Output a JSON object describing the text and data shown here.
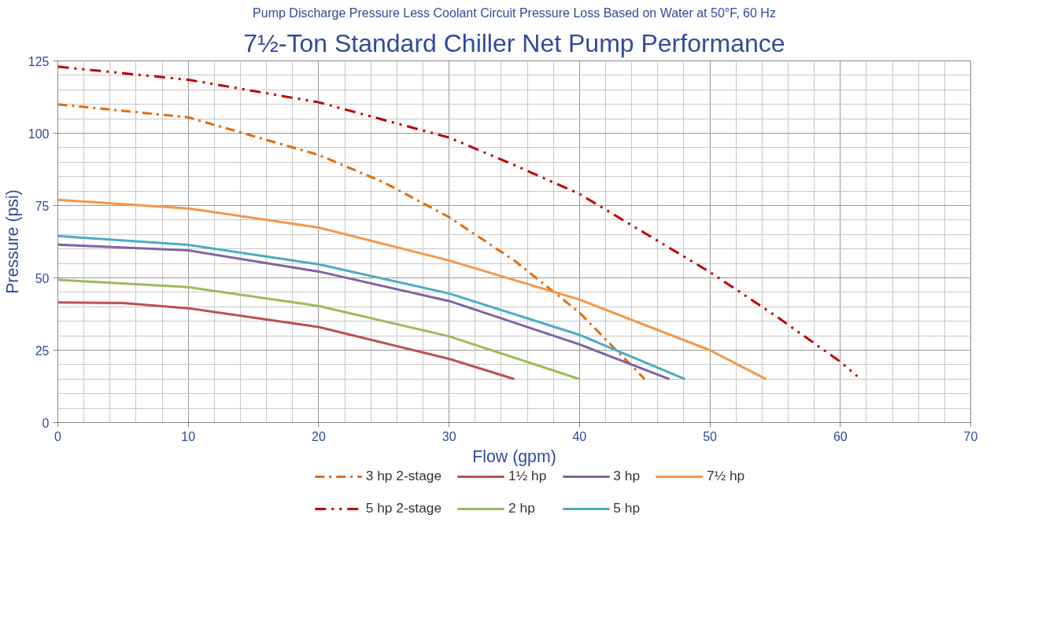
{
  "chart_data": {
    "type": "line",
    "title": "7½-Ton Standard Chiller Net Pump Performance",
    "subtitle": "Pump Discharge Pressure Less Coolant Circuit Pressure Loss Based on Water at 50°F, 60 Hz",
    "xlabel": "Flow (gpm)",
    "ylabel": "Pressure (psi)",
    "xlim": [
      0,
      70
    ],
    "xticks": [
      0,
      10,
      20,
      30,
      40,
      50,
      60,
      70
    ],
    "ylim": [
      0,
      125
    ],
    "yticks": [
      0,
      25,
      50,
      75,
      100,
      125
    ],
    "grid": true,
    "legend": "bottom",
    "marker": "none",
    "series": [
      {
        "name": "3 hp 2-stage",
        "color": "#e36c09",
        "line_style": "dashdot",
        "x": [
          0,
          10,
          20,
          25,
          30,
          35,
          40,
          45
        ],
        "values": [
          110,
          105.5,
          92.5,
          83,
          71,
          56,
          38,
          15
        ]
      },
      {
        "name": "5 hp 2-stage",
        "color": "#c00000",
        "line_style": "dashdotdot",
        "x": [
          0,
          10,
          20,
          30,
          35,
          40,
          45,
          50,
          55,
          60,
          61.3
        ],
        "values": [
          123,
          118.5,
          110.7,
          98.5,
          89,
          79,
          65.5,
          52,
          37,
          21,
          16
        ]
      },
      {
        "name": "1½ hp",
        "color": "#c0504d",
        "line_style": "solid",
        "x": [
          0,
          5,
          10,
          20,
          30,
          35
        ],
        "values": [
          41.5,
          41.3,
          39.5,
          33,
          22,
          15
        ]
      },
      {
        "name": "2 hp",
        "color": "#9bbb59",
        "line_style": "solid",
        "x": [
          0,
          10,
          20,
          30,
          40
        ],
        "values": [
          49.3,
          46.8,
          40.3,
          29.8,
          15
        ]
      },
      {
        "name": "3 hp",
        "color": "#8064a2",
        "line_style": "solid",
        "x": [
          0,
          10,
          20,
          30,
          40,
          46.9
        ],
        "values": [
          61.5,
          59.5,
          52.2,
          42,
          27,
          15
        ]
      },
      {
        "name": "5 hp",
        "color": "#4bacc6",
        "line_style": "solid",
        "x": [
          0,
          10,
          20,
          30,
          40,
          48.1
        ],
        "values": [
          64.5,
          61.4,
          54.7,
          44.6,
          30.3,
          15
        ]
      },
      {
        "name": "7½ hp",
        "color": "#f79646",
        "line_style": "solid",
        "x": [
          0,
          10,
          20,
          30,
          40,
          50,
          54.3
        ],
        "values": [
          77,
          74,
          67.4,
          56,
          42.5,
          25,
          15
        ]
      }
    ]
  }
}
